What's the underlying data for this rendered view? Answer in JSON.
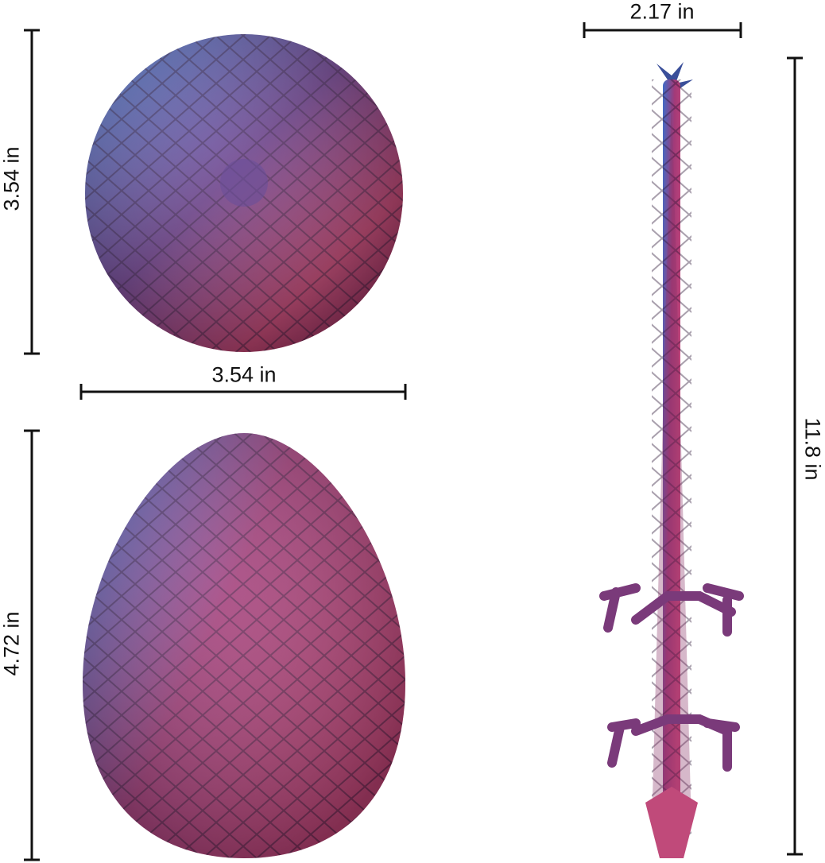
{
  "dimensions": {
    "sphere_height": "3.54 in",
    "sphere_width": "3.54 in",
    "egg_height": "4.72 in",
    "dragon_width": "2.17 in",
    "dragon_length": "11.8 in"
  },
  "colors": {
    "blue": "#3a5fb5",
    "magenta": "#b0366a",
    "dark": "#3a1f45",
    "line": "#111111"
  }
}
